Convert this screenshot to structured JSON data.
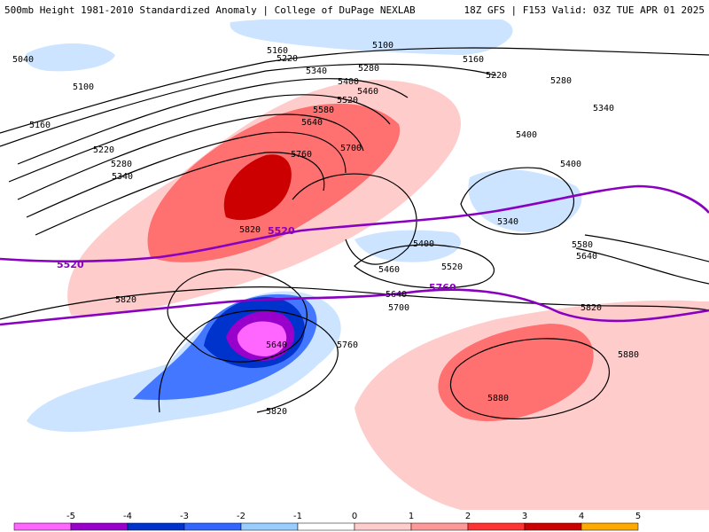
{
  "header": {
    "left": "500mb Height 1981-2010 Standardized Anomaly | College of DuPage NEXLAB",
    "right": "18Z GFS | F153 Valid: 03Z TUE APR 01 2025"
  },
  "contour_labels": [
    "5040",
    "5100",
    "5160",
    "5220",
    "5280",
    "5340",
    "5400",
    "5460",
    "5520",
    "5580",
    "5640",
    "5700",
    "5760",
    "5820",
    "5880"
  ],
  "highlight_lines": [
    {
      "label": "5520",
      "color": "#8a00c0"
    },
    {
      "label": "5760",
      "color": "#8a00c0"
    }
  ],
  "anomaly_scale": {
    "ticks": [
      "-5",
      "-4",
      "-3",
      "-2",
      "-1",
      "0",
      "1",
      "2",
      "3",
      "4",
      "5"
    ],
    "colors": [
      "#ff66ff",
      "#9900cc",
      "#0033cc",
      "#3366ff",
      "#99ccff",
      "#ffffff",
      "#ffcccc",
      "#ff9999",
      "#ff3333",
      "#cc0000",
      "#ffaa00"
    ]
  }
}
